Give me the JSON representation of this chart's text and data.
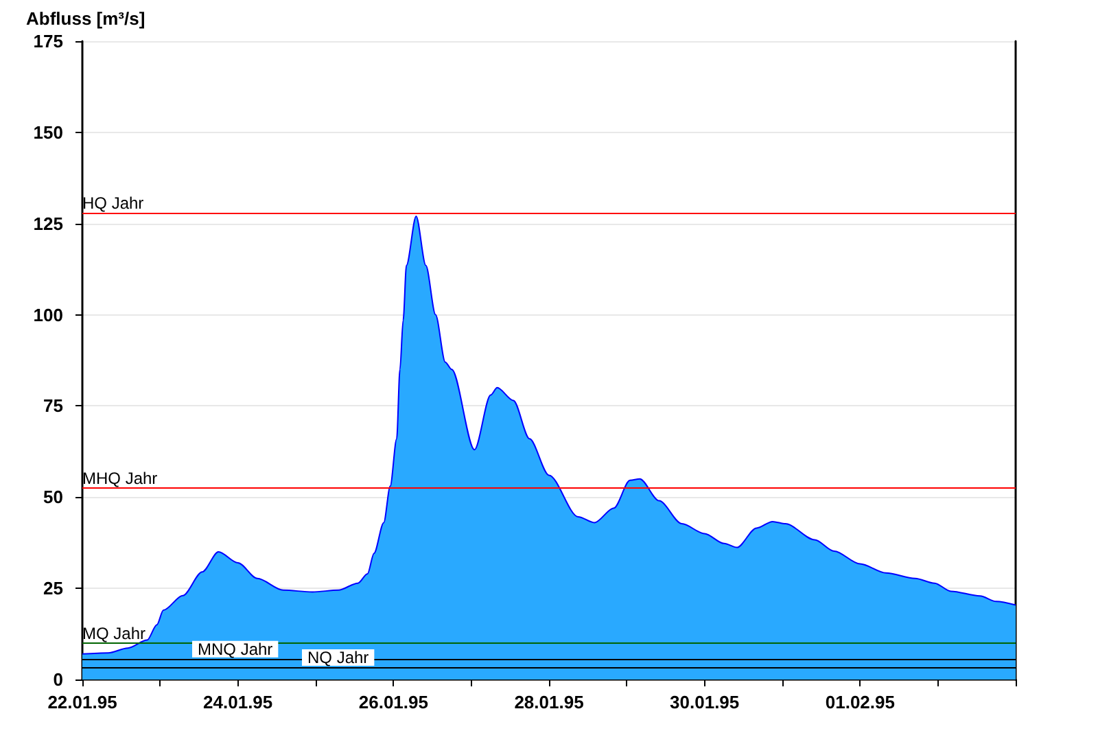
{
  "chart_data": {
    "type": "area",
    "ylabel": "Abfluss [m³/s]",
    "x": [
      "1995-01-22T00:00",
      "1995-01-22T08:00",
      "1995-01-22T14:00",
      "1995-01-22T20:00",
      "1995-01-22T23:00",
      "1995-01-23T01:00",
      "1995-01-23T07:00",
      "1995-01-23T13:00",
      "1995-01-23T18:00",
      "1995-01-24T00:00",
      "1995-01-24T06:00",
      "1995-01-24T14:00",
      "1995-01-24T23:00",
      "1995-01-25T07:00",
      "1995-01-25T13:00",
      "1995-01-25T16:00",
      "1995-01-25T18:00",
      "1995-01-25T21:00",
      "1995-01-25T23:00",
      "1995-01-26T01:00",
      "1995-01-26T02:00",
      "1995-01-26T03:00",
      "1995-01-26T04:00",
      "1995-01-26T07:00",
      "1995-01-26T10:00",
      "1995-01-26T13:00",
      "1995-01-26T16:00",
      "1995-01-26T18:00",
      "1995-01-27T01:00",
      "1995-01-27T06:00",
      "1995-01-27T08:00",
      "1995-01-27T13:00",
      "1995-01-27T18:00",
      "1995-01-28T00:00",
      "1995-01-28T09:00",
      "1995-01-28T14:00",
      "1995-01-28T20:00",
      "1995-01-29T01:00",
      "1995-01-29T04:00",
      "1995-01-29T10:00",
      "1995-01-29T17:00",
      "1995-01-30T00:00",
      "1995-01-30T06:00",
      "1995-01-30T10:00",
      "1995-01-30T16:00",
      "1995-01-30T21:00",
      "1995-01-31T01:00",
      "1995-01-31T10:00",
      "1995-01-31T16:00",
      "1995-02-01T00:00",
      "1995-02-01T08:00",
      "1995-02-01T17:00",
      "1995-02-01T23:00",
      "1995-02-02T04:00",
      "1995-02-02T13:00",
      "1995-02-02T18:00",
      "1995-02-03T00:00"
    ],
    "series": [
      {
        "color": "#29a9ff",
        "values": [
          7,
          7.3,
          8.6,
          10.8,
          15,
          19,
          23,
          29.5,
          35,
          32,
          27.7,
          24.5,
          24,
          24.5,
          26.4,
          29,
          34.6,
          43,
          53,
          66,
          85,
          98.5,
          113.5,
          127,
          113.5,
          100,
          87,
          85,
          63,
          78,
          80,
          76.5,
          66,
          56,
          44.6,
          43,
          47,
          54.6,
          55,
          49,
          42.7,
          40,
          37.3,
          36.2,
          41.5,
          43.3,
          42.7,
          38.3,
          35.2,
          31.7,
          29.2,
          27.7,
          26.4,
          24.2,
          22.9,
          21.4,
          20.4
        ]
      }
    ],
    "xlim": [
      "1995-01-22",
      "1995-02-03"
    ],
    "xticks": [
      {
        "value": "1995-01-22",
        "label": "22.01.95"
      },
      {
        "value": "1995-01-23",
        "label": null
      },
      {
        "value": "1995-01-24",
        "label": "24.01.95"
      },
      {
        "value": "1995-01-25",
        "label": null
      },
      {
        "value": "1995-01-26",
        "label": "26.01.95"
      },
      {
        "value": "1995-01-27",
        "label": null
      },
      {
        "value": "1995-01-28",
        "label": "28.01.95"
      },
      {
        "value": "1995-01-29",
        "label": null
      },
      {
        "value": "1995-01-30",
        "label": "30.01.95"
      },
      {
        "value": "1995-01-31",
        "label": null
      },
      {
        "value": "1995-02-01",
        "label": "01.02.95"
      },
      {
        "value": "1995-02-02",
        "label": null
      },
      {
        "value": "1995-02-03",
        "label": null
      }
    ],
    "ylim": [
      0,
      175
    ],
    "yticks": [
      0,
      25,
      50,
      75,
      100,
      125,
      150,
      175
    ],
    "ref_lines": [
      {
        "axis": "y",
        "value": 128,
        "label": "HQ Jahr",
        "color": "#ff0000"
      },
      {
        "axis": "y",
        "value": 52.5,
        "label": "MHQ Jahr",
        "color": "#ff0000"
      },
      {
        "axis": "y",
        "value": 10,
        "label": "MQ Jahr",
        "color": "#006400"
      },
      {
        "axis": "y",
        "value": 5.7,
        "label": "MNQ Jahr",
        "color": "#000000"
      },
      {
        "axis": "y",
        "value": 3.4,
        "label": "NQ Jahr",
        "color": "#000000"
      }
    ],
    "grid": "y"
  }
}
